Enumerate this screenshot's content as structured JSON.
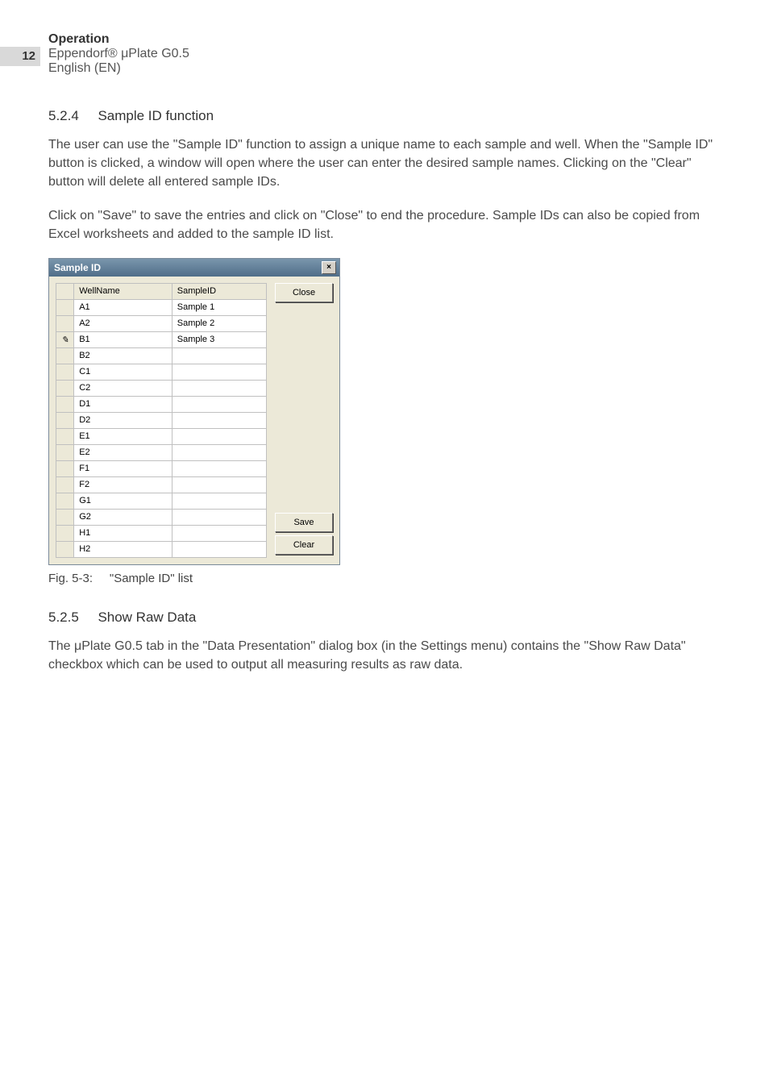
{
  "page": {
    "number": "12",
    "header_title": "Operation",
    "header_line2": "Eppendorf® μPlate G0.5",
    "header_line3": "English (EN)"
  },
  "sec1": {
    "num": "5.2.4",
    "title": "Sample ID function",
    "p1": "The user can use the \"Sample ID\" function to assign a unique name to each sample and well. When the \"Sample ID\" button is clicked, a window will open where the user can enter the desired sample names. Clicking on the \"Clear\" button will delete all entered sample IDs.",
    "p2": "Click on \"Save\" to save the entries and click on \"Close\" to end the procedure. Sample IDs can also be copied from Excel worksheets and added to the sample ID list."
  },
  "dialog": {
    "title": "Sample ID",
    "close_x": "×",
    "col_wellname": "WellName",
    "col_sampleid": "SampleID",
    "btn_close": "Close",
    "btn_save": "Save",
    "btn_clear": "Clear",
    "edit_marker": "✎",
    "rows": [
      {
        "well": "A1",
        "sample": "Sample 1",
        "editing": false
      },
      {
        "well": "A2",
        "sample": "Sample 2",
        "editing": false
      },
      {
        "well": "B1",
        "sample": "Sample 3",
        "editing": true
      },
      {
        "well": "B2",
        "sample": "",
        "editing": false
      },
      {
        "well": "C1",
        "sample": "",
        "editing": false
      },
      {
        "well": "C2",
        "sample": "",
        "editing": false
      },
      {
        "well": "D1",
        "sample": "",
        "editing": false
      },
      {
        "well": "D2",
        "sample": "",
        "editing": false
      },
      {
        "well": "E1",
        "sample": "",
        "editing": false
      },
      {
        "well": "E2",
        "sample": "",
        "editing": false
      },
      {
        "well": "F1",
        "sample": "",
        "editing": false
      },
      {
        "well": "F2",
        "sample": "",
        "editing": false
      },
      {
        "well": "G1",
        "sample": "",
        "editing": false
      },
      {
        "well": "G2",
        "sample": "",
        "editing": false
      },
      {
        "well": "H1",
        "sample": "",
        "editing": false
      },
      {
        "well": "H2",
        "sample": "",
        "editing": false
      }
    ]
  },
  "fig": {
    "label": "Fig. 5-3:",
    "caption": "\"Sample ID\" list"
  },
  "sec2": {
    "num": "5.2.5",
    "title": "Show Raw Data",
    "p1": "The μPlate G0.5 tab in the \"Data Presentation\" dialog box (in the Settings menu) contains the \"Show Raw Data\" checkbox which can be used to output all measuring results as raw data."
  }
}
